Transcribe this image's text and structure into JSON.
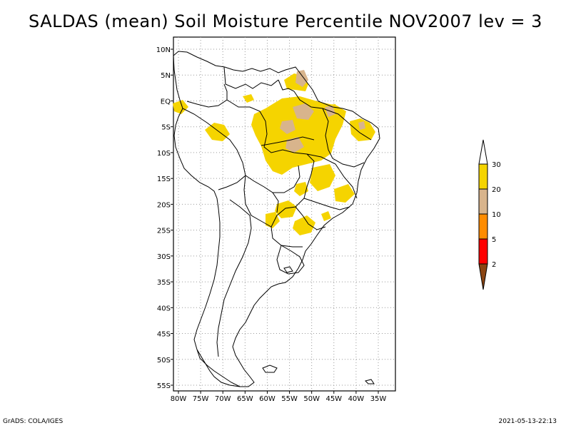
{
  "title": "SALDAS (mean) Soil Moisture Percentile NOV2007 lev = 3",
  "map": {
    "lat_labels": [
      "10N",
      "5N",
      "EQ",
      "5S",
      "10S",
      "15S",
      "20S",
      "25S",
      "30S",
      "35S",
      "40S",
      "45S",
      "50S",
      "55S"
    ],
    "lon_labels": [
      "80W",
      "75W",
      "70W",
      "65W",
      "60W",
      "55W",
      "50W",
      "45W",
      "40W",
      "35W"
    ]
  },
  "colorbar": {
    "labels": [
      "30",
      "20",
      "10",
      "5",
      "2"
    ],
    "colors": {
      "top": "#ffffff",
      "c20_30": "#f5d400",
      "c10_20": "#d8b48c",
      "c5_10": "#ff8c00",
      "c2_5": "#ff0000",
      "bottom": "#8b4513"
    }
  },
  "footer": {
    "left": "GrADS: COLA/IGES",
    "right": "2021-05-13-22:13"
  }
}
